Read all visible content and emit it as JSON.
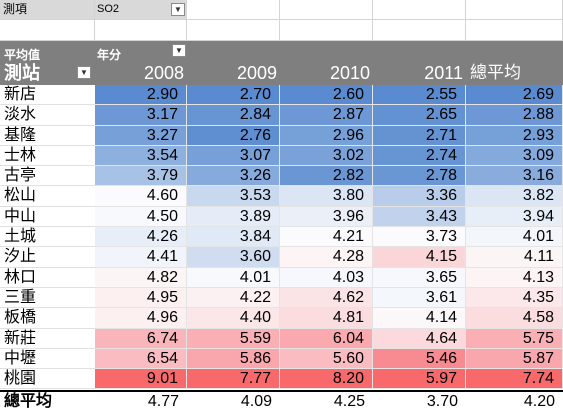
{
  "filter": {
    "label": "測項",
    "value": "SO2"
  },
  "header": {
    "avg_label": "平均值",
    "year_label": "年分",
    "station_label": "測站",
    "years": [
      "2008",
      "2009",
      "2010",
      "2011"
    ],
    "total_label": "總平均"
  },
  "rows": [
    {
      "name": "新店",
      "values": [
        "2.90",
        "2.70",
        "2.60",
        "2.55"
      ],
      "total": "2.69",
      "colors": [
        "#5a8ad0",
        "#5a8ad0",
        "#5a8ad0",
        "#5a8ad0",
        "#5a8ad0"
      ]
    },
    {
      "name": "淡水",
      "values": [
        "3.17",
        "2.84",
        "2.87",
        "2.65"
      ],
      "total": "2.88",
      "colors": [
        "#6e98d5",
        "#6794d3",
        "#6e98d5",
        "#6392d2",
        "#6e98d5"
      ]
    },
    {
      "name": "基隆",
      "values": [
        "3.27",
        "2.76",
        "2.96",
        "2.71"
      ],
      "total": "2.93",
      "colors": [
        "#779fd8",
        "#5f8fd1",
        "#76a0d8",
        "#6593d2",
        "#76a0d8"
      ]
    },
    {
      "name": "士林",
      "values": [
        "3.54",
        "3.07",
        "3.02",
        "2.74"
      ],
      "total": "3.09",
      "colors": [
        "#8eb0de",
        "#77a0d8",
        "#7aa2d9",
        "#6795d3",
        "#84a9dc"
      ]
    },
    {
      "name": "古亭",
      "values": [
        "3.79",
        "3.26",
        "2.82",
        "2.78"
      ],
      "total": "3.16",
      "colors": [
        "#a8c2e5",
        "#86aadc",
        "#6a97d4",
        "#6a97d4",
        "#8aacdd"
      ]
    },
    {
      "name": "松山",
      "values": [
        "4.60",
        "3.53",
        "3.80",
        "3.36"
      ],
      "total": "3.82",
      "colors": [
        "#fbfbfe",
        "#c8d8ef",
        "#dbe5f4",
        "#b9cdea",
        "#dbe5f4"
      ]
    },
    {
      "name": "中山",
      "values": [
        "4.50",
        "3.89",
        "3.96",
        "3.43"
      ],
      "total": "3.94",
      "colors": [
        "#f7f9fd",
        "#e5ecf7",
        "#eaeff8",
        "#c0d2ec",
        "#e8eef8"
      ]
    },
    {
      "name": "土城",
      "values": [
        "4.26",
        "3.84",
        "4.21",
        "3.73"
      ],
      "total": "4.01",
      "colors": [
        "#e7eef8",
        "#e0e9f6",
        "#fbfbfe",
        "#fbfbfe",
        "#f3f6fb"
      ]
    },
    {
      "name": "汐止",
      "values": [
        "4.41",
        "3.60",
        "4.28",
        "4.15"
      ],
      "total": "4.11",
      "colors": [
        "#f1f5fb",
        "#d0ddf1",
        "#fcf4f5",
        "#fbd6d9",
        "#fcf5f6"
      ]
    },
    {
      "name": "林口",
      "values": [
        "4.82",
        "4.01",
        "4.03",
        "3.65"
      ],
      "total": "4.13",
      "colors": [
        "#fcf5f6",
        "#f8f9fd",
        "#f6f8fd",
        "#f6f8fd",
        "#fcf4f5"
      ]
    },
    {
      "name": "三重",
      "values": [
        "4.95",
        "4.22",
        "4.62",
        "3.61"
      ],
      "total": "4.35",
      "colors": [
        "#fcf0f1",
        "#fcf1f2",
        "#fbe4e6",
        "#f4f7fc",
        "#fce8ea"
      ]
    },
    {
      "name": "板橋",
      "values": [
        "4.96",
        "4.40",
        "4.81",
        "4.14"
      ],
      "total": "4.58",
      "colors": [
        "#fcf0f1",
        "#fbe6e8",
        "#fbdde0",
        "#fcf7f8",
        "#fbdcdf"
      ]
    },
    {
      "name": "新莊",
      "values": [
        "6.74",
        "5.59",
        "6.04",
        "4.64"
      ],
      "total": "5.75",
      "colors": [
        "#fab5bb",
        "#faafb5",
        "#faa9af",
        "#fbd9dc",
        "#faafb5"
      ]
    },
    {
      "name": "中壢",
      "values": [
        "6.54",
        "5.86",
        "5.60",
        "5.46"
      ],
      "total": "5.87",
      "colors": [
        "#fbbcc1",
        "#f9a6ac",
        "#fbbcc1",
        "#f88a91",
        "#f9a7ad"
      ]
    },
    {
      "name": "桃園",
      "values": [
        "9.01",
        "7.77",
        "8.20",
        "5.97"
      ],
      "total": "7.74",
      "colors": [
        "#f8696b",
        "#f8696b",
        "#f8696b",
        "#f8696b",
        "#f8696b"
      ]
    }
  ],
  "footer": {
    "label": "總平均",
    "values": [
      "4.77",
      "4.09",
      "4.25",
      "3.70"
    ],
    "total": "4.20"
  }
}
